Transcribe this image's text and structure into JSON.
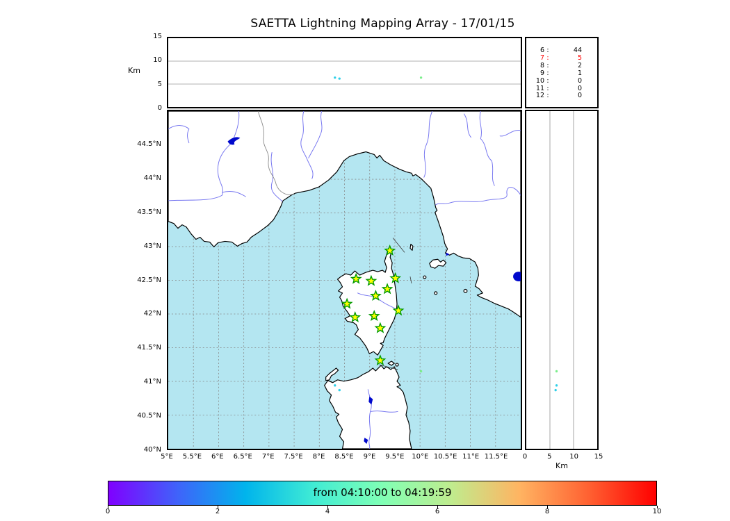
{
  "title": "SAETTA Lightning Mapping Array - 17/01/15",
  "colors": {
    "sea": "#b4e6f1",
    "land": "#ffffff",
    "coast": "#000000",
    "river": "#7878f0",
    "lake": "#0008cc",
    "star_fill": "#ffff00",
    "star_edge": "#009900",
    "highlight": "#ff0000"
  },
  "top_panel": {
    "ylabel": "Km",
    "ticks": [
      {
        "label": "0",
        "v": 0
      },
      {
        "label": "5",
        "v": 5
      },
      {
        "label": "10",
        "v": 10
      },
      {
        "label": "15",
        "v": 15
      }
    ],
    "gridlines_km": [
      5,
      10
    ],
    "ylim": [
      0,
      15
    ]
  },
  "stats_panel": {
    "separator": ":"
  },
  "map_panel": {
    "lon_ticks": [
      {
        "label": "5°E",
        "v": 5
      },
      {
        "label": "5.5°E",
        "v": 5.5
      },
      {
        "label": "6°E",
        "v": 6
      },
      {
        "label": "6.5°E",
        "v": 6.5
      },
      {
        "label": "7°E",
        "v": 7
      },
      {
        "label": "7.5°E",
        "v": 7.5
      },
      {
        "label": "8°E",
        "v": 8
      },
      {
        "label": "8.5°E",
        "v": 8.5
      },
      {
        "label": "9°E",
        "v": 9
      },
      {
        "label": "9.5°E",
        "v": 9.5
      },
      {
        "label": "10°E",
        "v": 10
      },
      {
        "label": "10.5°E",
        "v": 10.5
      },
      {
        "label": "11°E",
        "v": 11
      },
      {
        "label": "11.5°E",
        "v": 11.5
      }
    ],
    "lat_ticks": [
      {
        "label": "40°N",
        "v": 40
      },
      {
        "label": "40.5°N",
        "v": 40.5
      },
      {
        "label": "41°N",
        "v": 41
      },
      {
        "label": "41.5°N",
        "v": 41.5
      },
      {
        "label": "42°N",
        "v": 42
      },
      {
        "label": "42.5°N",
        "v": 42.5
      },
      {
        "label": "43°N",
        "v": 43
      },
      {
        "label": "43.5°N",
        "v": 43.5
      },
      {
        "label": "44°N",
        "v": 44
      },
      {
        "label": "44.5°N",
        "v": 44.5
      }
    ],
    "lon_range": [
      5,
      12
    ],
    "lat_range": [
      40,
      45.01
    ]
  },
  "right_panel": {
    "xlabel": "Km",
    "ticks": [
      {
        "label": "0",
        "v": 0
      },
      {
        "label": "5",
        "v": 5
      },
      {
        "label": "10",
        "v": 10
      },
      {
        "label": "15",
        "v": 15
      }
    ],
    "gridlines_km": [
      5,
      10
    ],
    "xlim": [
      0,
      15
    ]
  },
  "colorbar": {
    "label": "from 04:10:00 to 04:19:59",
    "ticks": [
      {
        "label": "0",
        "v": 0
      },
      {
        "label": "2",
        "v": 2
      },
      {
        "label": "4",
        "v": 4
      },
      {
        "label": "6",
        "v": 6
      },
      {
        "label": "8",
        "v": 8
      },
      {
        "label": "10",
        "v": 10
      }
    ],
    "range": [
      0,
      10
    ],
    "gradient": [
      "#8000ff",
      "#4062fa",
      "#00b4ec",
      "#40ecd4",
      "#80ffb5",
      "#bfec8e",
      "#ffb462",
      "#ff6232",
      "#ff0000"
    ]
  },
  "chart_data": {
    "type": "scatter",
    "title": "SAETTA Lightning Mapping Array - 17/01/15",
    "time_window": {
      "from": "04:10:00",
      "to": "04:19:59"
    },
    "panels": {
      "top": {
        "x": "longitude_deg_E",
        "y": "altitude_km",
        "ylim": [
          0,
          15
        ]
      },
      "map": {
        "x": "longitude_deg_E",
        "xlim": [
          5,
          12
        ],
        "y": "latitude_deg_N",
        "ylim": [
          40,
          45.01
        ],
        "grid_step_deg": 0.5
      },
      "right": {
        "x": "altitude_km",
        "xlim": [
          0,
          15
        ],
        "y": "latitude_deg_N"
      }
    },
    "stations_lon_lat": [
      [
        9.4,
        42.94
      ],
      [
        8.73,
        42.52
      ],
      [
        9.03,
        42.49
      ],
      [
        9.51,
        42.53
      ],
      [
        9.35,
        42.37
      ],
      [
        9.12,
        42.27
      ],
      [
        8.55,
        42.15
      ],
      [
        9.57,
        42.05
      ],
      [
        8.71,
        41.95
      ],
      [
        9.09,
        41.97
      ],
      [
        9.21,
        41.79
      ],
      [
        9.21,
        41.31
      ]
    ],
    "lightning_sources": [
      {
        "lon": 8.31,
        "lat": 40.94,
        "alt_km": 6.4,
        "color": "#2fd0e8"
      },
      {
        "lon": 8.4,
        "lat": 40.87,
        "alt_km": 6.2,
        "color": "#2fd0e8"
      },
      {
        "lon": 10.02,
        "lat": 41.15,
        "alt_km": 6.4,
        "color": "#7bee8b"
      }
    ],
    "source_count_by_altitude": [
      {
        "alt_km": "6",
        "count": "44",
        "highlight": false
      },
      {
        "alt_km": "7",
        "count": "5",
        "highlight": true
      },
      {
        "alt_km": "8",
        "count": "2",
        "highlight": false
      },
      {
        "alt_km": "9",
        "count": "1",
        "highlight": false
      },
      {
        "alt_km": "10",
        "count": "0",
        "highlight": false
      },
      {
        "alt_km": "11",
        "count": "0",
        "highlight": false
      },
      {
        "alt_km": "12",
        "count": "0",
        "highlight": false
      }
    ]
  }
}
